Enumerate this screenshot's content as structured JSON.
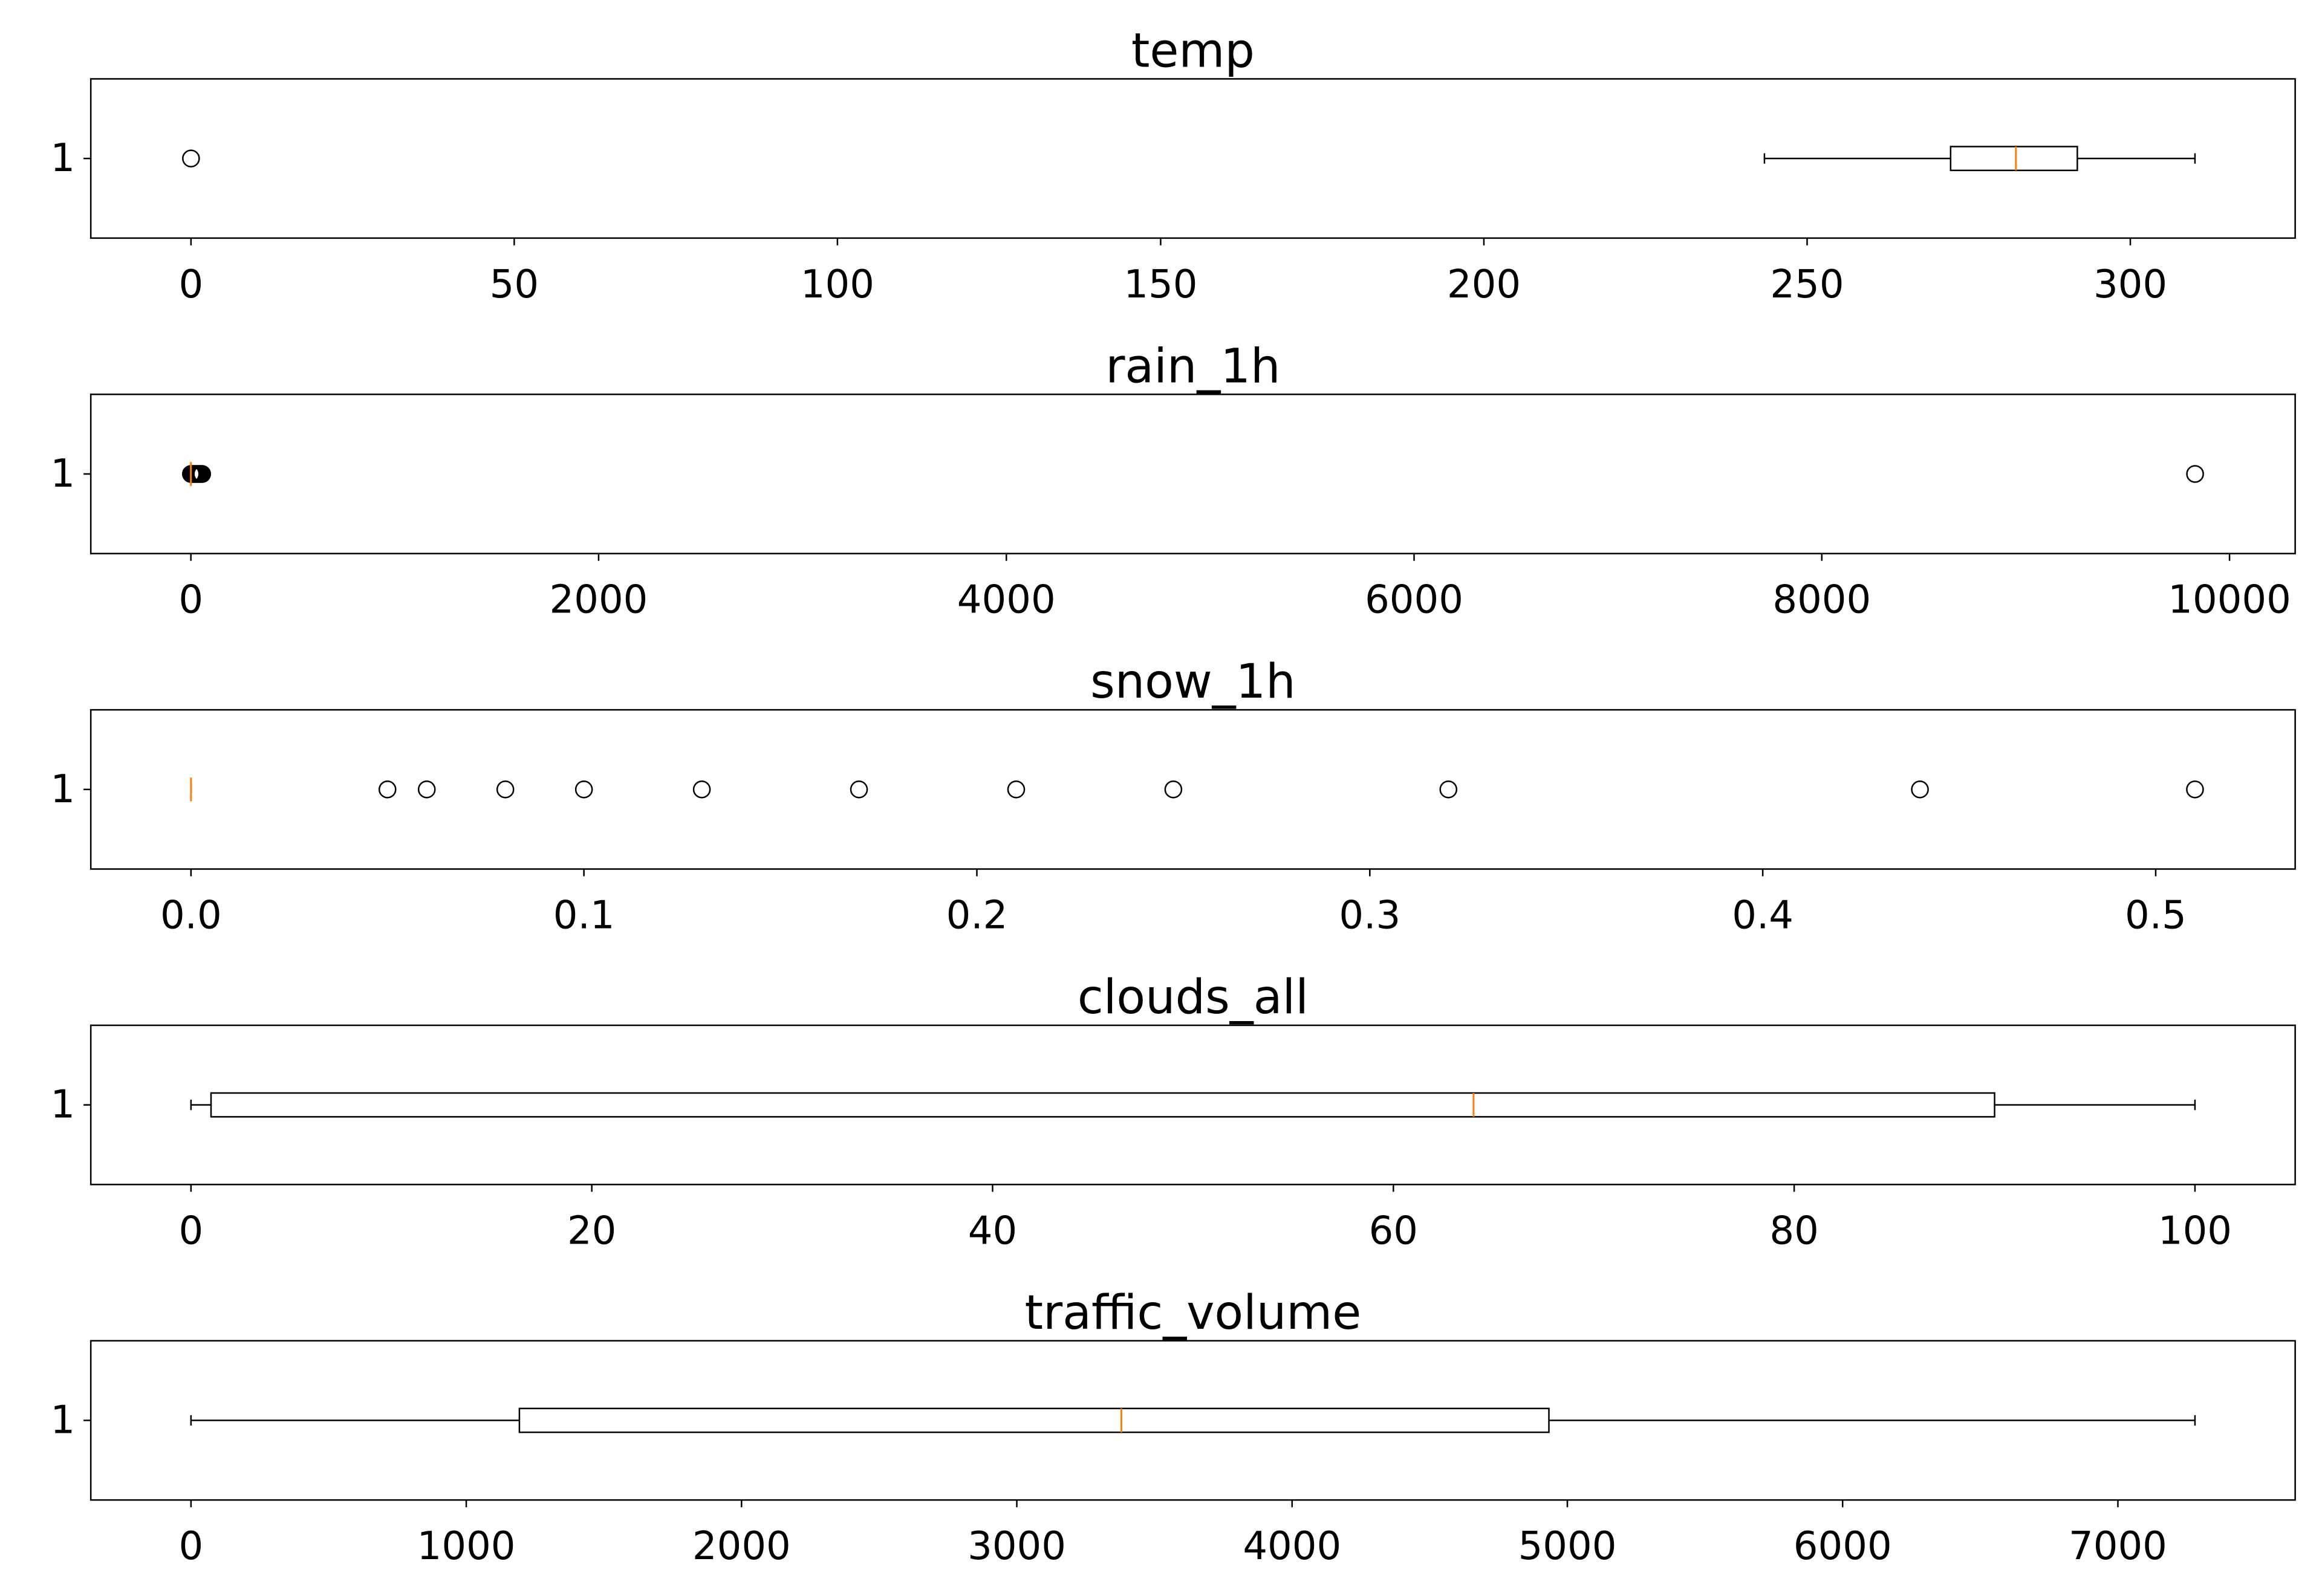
{
  "colors": {
    "box": "#000000",
    "median": "#ff7f0e",
    "background": "#ffffff"
  },
  "chart_data": [
    {
      "type": "boxplot",
      "orientation": "horizontal",
      "title": "temp",
      "ytick_labels": [
        "1"
      ],
      "xlim": [
        -15.5,
        325.5
      ],
      "xticks": [
        0,
        50,
        100,
        150,
        200,
        250,
        300
      ],
      "xtick_labels": [
        "0",
        "50",
        "100",
        "150",
        "200",
        "250",
        "300"
      ],
      "box": {
        "whisker_low": 243.4,
        "q1": 272.2,
        "median": 282.3,
        "q3": 291.8,
        "whisker_high": 310
      },
      "fliers": [
        0
      ]
    },
    {
      "type": "boxplot",
      "orientation": "horizontal",
      "title": "rain_1h",
      "ytick_labels": [
        "1"
      ],
      "xlim": [
        -491,
        10322
      ],
      "xticks": [
        0,
        2000,
        4000,
        6000,
        8000,
        10000
      ],
      "xtick_labels": [
        "0",
        "2000",
        "4000",
        "6000",
        "8000",
        "10000"
      ],
      "box": {
        "whisker_low": 0,
        "q1": 0,
        "median": 0,
        "q3": 0,
        "whisker_high": 0
      },
      "fliers": [
        0.25,
        5,
        10,
        15,
        20,
        25,
        30,
        35,
        40,
        45,
        50,
        55,
        9831
      ]
    },
    {
      "type": "boxplot",
      "orientation": "horizontal",
      "title": "snow_1h",
      "ytick_labels": [
        "1"
      ],
      "xlim": [
        -0.0255,
        0.5355
      ],
      "xticks": [
        0.0,
        0.1,
        0.2,
        0.3,
        0.4,
        0.5
      ],
      "xtick_labels": [
        "0.0",
        "0.1",
        "0.2",
        "0.3",
        "0.4",
        "0.5"
      ],
      "box": {
        "whisker_low": 0,
        "q1": 0,
        "median": 0,
        "q3": 0,
        "whisker_high": 0
      },
      "fliers": [
        0.05,
        0.06,
        0.08,
        0.1,
        0.13,
        0.17,
        0.21,
        0.25,
        0.32,
        0.44,
        0.51
      ]
    },
    {
      "type": "boxplot",
      "orientation": "horizontal",
      "title": "clouds_all",
      "ytick_labels": [
        "1"
      ],
      "xlim": [
        -5,
        105
      ],
      "xticks": [
        0,
        20,
        40,
        60,
        80,
        100
      ],
      "xtick_labels": [
        "0",
        "20",
        "40",
        "60",
        "80",
        "100"
      ],
      "box": {
        "whisker_low": 0,
        "q1": 1,
        "median": 64,
        "q3": 90,
        "whisker_high": 100
      },
      "fliers": []
    },
    {
      "type": "boxplot",
      "orientation": "horizontal",
      "title": "traffic_volume",
      "ytick_labels": [
        "1"
      ],
      "xlim": [
        -364,
        7644
      ],
      "xticks": [
        0,
        1000,
        2000,
        3000,
        4000,
        5000,
        6000,
        7000
      ],
      "xtick_labels": [
        "0",
        "1000",
        "2000",
        "3000",
        "4000",
        "5000",
        "6000",
        "7000"
      ],
      "box": {
        "whisker_low": 0,
        "q1": 1193,
        "median": 3380,
        "q3": 4933,
        "whisker_high": 7280
      },
      "fliers": []
    }
  ]
}
